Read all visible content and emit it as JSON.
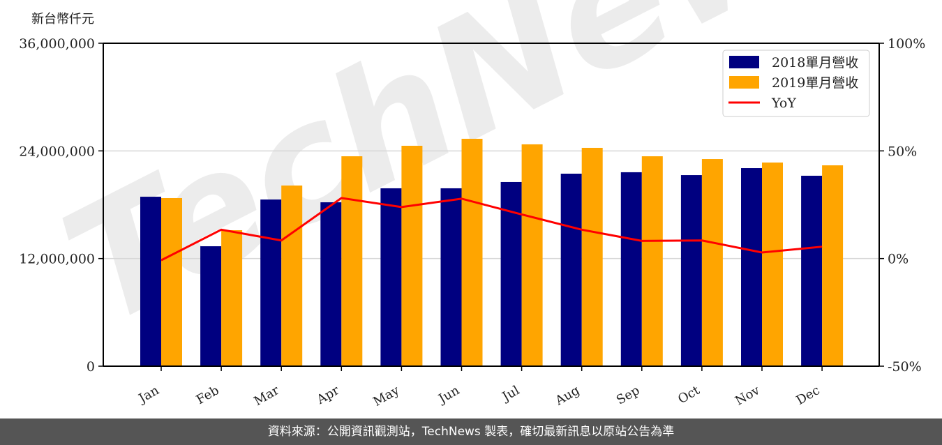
{
  "chart_data": {
    "type": "bar",
    "title": "",
    "ylabel": "新台幣仟元",
    "ylabel_right": "",
    "xlabel": "",
    "categories": [
      "Jan",
      "Feb",
      "Mar",
      "Apr",
      "May",
      "Jun",
      "Jul",
      "Aug",
      "Sep",
      "Oct",
      "Nov",
      "Dec"
    ],
    "series": [
      {
        "name": "2018單月營收",
        "type": "bar",
        "axis": "left",
        "color": "#000080",
        "values": [
          18890000,
          13370000,
          18580000,
          18270000,
          19830000,
          19830000,
          20530000,
          21460000,
          21620000,
          21300000,
          22080000,
          21230000
        ]
      },
      {
        "name": "2019單月營收",
        "type": "bar",
        "axis": "left",
        "color": "#FFA500",
        "values": [
          18740000,
          15160000,
          20140000,
          23400000,
          24570000,
          25350000,
          24730000,
          24340000,
          23400000,
          23090000,
          22700000,
          22390000
        ]
      },
      {
        "name": "YoY",
        "type": "line",
        "axis": "right",
        "color": "#FF0000",
        "values": [
          -0.8,
          13.4,
          8.4,
          28.1,
          23.9,
          27.8,
          20.5,
          13.4,
          8.2,
          8.4,
          2.8,
          5.5
        ]
      }
    ],
    "ylim": [
      0,
      36000000
    ],
    "yticks": [
      0,
      12000000,
      24000000,
      36000000
    ],
    "ytick_labels": [
      "0",
      "12,000,000",
      "24,000,000",
      "36,000,000"
    ],
    "ylim_right": [
      -50,
      100
    ],
    "yticks_right": [
      -50,
      0,
      50,
      100
    ],
    "ytick_labels_right": [
      "-50%",
      "0%",
      "50%",
      "100%"
    ],
    "grid": "horizontal",
    "legend_position": "upper right",
    "watermark": "TechNews"
  },
  "axis": {
    "left_unit": "新台幣仟元"
  },
  "legend": {
    "items": [
      {
        "label": "2018單月營收",
        "color": "#000080",
        "kind": "bar"
      },
      {
        "label": "2019單月營收",
        "color": "#FFA500",
        "kind": "bar"
      },
      {
        "label": "YoY",
        "color": "#FF0000",
        "kind": "line"
      }
    ]
  },
  "footer": {
    "text": "資料來源：公開資訊觀測站，TechNews 製表，確切最新訊息以原站公告為準"
  }
}
